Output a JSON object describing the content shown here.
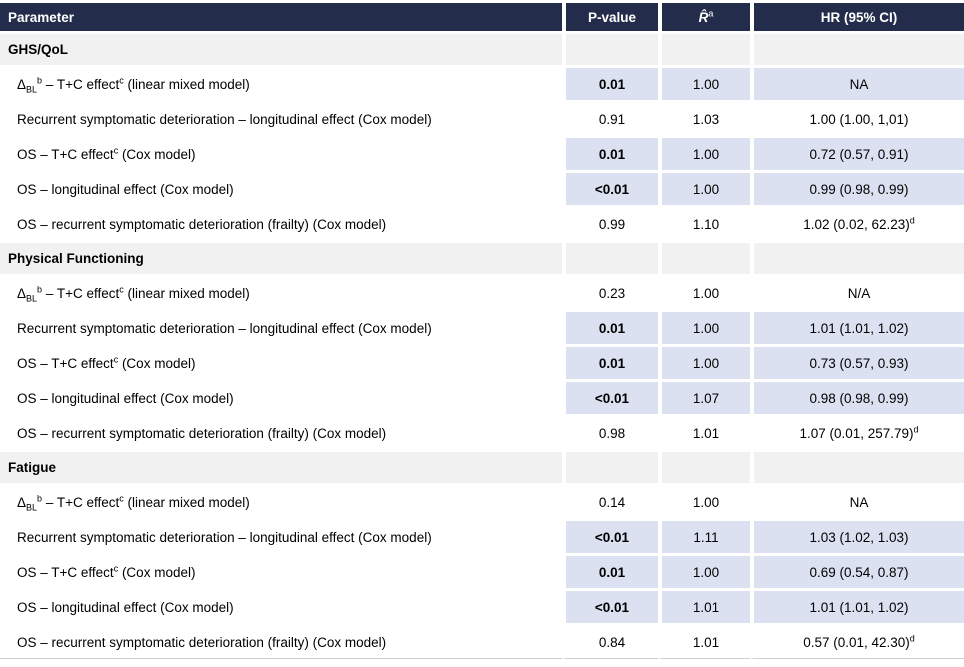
{
  "table": {
    "colors": {
      "header_bg": "#232c4b",
      "header_text": "#ffffff",
      "section_bg": "#f1f1f1",
      "significant_row_bg": "#dce1f2",
      "body_text": "#000000"
    },
    "columns": [
      {
        "label": "Parameter"
      },
      {
        "label": "P-value"
      },
      {
        "label": "R̂",
        "sup": "a"
      },
      {
        "label": "HR (95% CI)"
      }
    ],
    "sections": [
      {
        "title": "GHS/QoL",
        "rows": [
          {
            "parameter": [
              {
                "v": "Δ"
              },
              {
                "t": "sub",
                "v": "BL"
              },
              {
                "t": "sup",
                "v": "b"
              },
              {
                "v": " – T+C effect"
              },
              {
                "t": "sup",
                "v": "c"
              },
              {
                "v": " (linear mixed model)"
              }
            ],
            "p_value": "0.01",
            "p_bold": true,
            "r_hat": "1.00",
            "hr": "NA",
            "highlight": true
          },
          {
            "parameter": [
              {
                "v": "Recurrent symptomatic deterioration – longitudinal effect (Cox model)"
              }
            ],
            "p_value": "0.91",
            "p_bold": false,
            "r_hat": "1.03",
            "hr": "1.00 (1.00, 1,01)",
            "highlight": false
          },
          {
            "parameter": [
              {
                "v": "OS – T+C effect"
              },
              {
                "t": "sup",
                "v": "c"
              },
              {
                "v": " (Cox model)"
              }
            ],
            "p_value": "0.01",
            "p_bold": true,
            "r_hat": "1.00",
            "hr": "0.72 (0.57, 0.91)",
            "highlight": true
          },
          {
            "parameter": [
              {
                "v": "OS – longitudinal effect (Cox model)"
              }
            ],
            "p_value": "<0.01",
            "p_bold": true,
            "r_hat": "1.00",
            "hr": "0.99 (0.98, 0.99)",
            "highlight": true
          },
          {
            "parameter": [
              {
                "v": "OS – recurrent symptomatic deterioration (frailty) (Cox model)"
              }
            ],
            "p_value": "0.99",
            "p_bold": false,
            "r_hat": "1.10",
            "hr": "1.02 (0.02, 62.23)",
            "hr_sup": "d",
            "highlight": false
          }
        ]
      },
      {
        "title": "Physical Functioning",
        "rows": [
          {
            "parameter": [
              {
                "v": "Δ"
              },
              {
                "t": "sub",
                "v": "BL"
              },
              {
                "t": "sup",
                "v": "b"
              },
              {
                "v": " – T+C effect"
              },
              {
                "t": "sup",
                "v": "c"
              },
              {
                "v": " (linear mixed model)"
              }
            ],
            "p_value": "0.23",
            "p_bold": false,
            "r_hat": "1.00",
            "hr": "N/A",
            "highlight": false
          },
          {
            "parameter": [
              {
                "v": "Recurrent symptomatic deterioration – longitudinal effect (Cox model)"
              }
            ],
            "p_value": "0.01",
            "p_bold": true,
            "r_hat": "1.00",
            "hr": "1.01 (1.01, 1.02)",
            "highlight": true
          },
          {
            "parameter": [
              {
                "v": "OS – T+C effect"
              },
              {
                "t": "sup",
                "v": "c"
              },
              {
                "v": " (Cox model)"
              }
            ],
            "p_value": "0.01",
            "p_bold": true,
            "r_hat": "1.00",
            "hr": "0.73 (0.57, 0.93)",
            "highlight": true
          },
          {
            "parameter": [
              {
                "v": "OS – longitudinal effect (Cox model)"
              }
            ],
            "p_value": "<0.01",
            "p_bold": true,
            "r_hat": "1.07",
            "hr": "0.98 (0.98, 0.99)",
            "highlight": true
          },
          {
            "parameter": [
              {
                "v": "OS – recurrent symptomatic deterioration (frailty) (Cox model)"
              }
            ],
            "p_value": "0.98",
            "p_bold": false,
            "r_hat": "1.01",
            "hr": "1.07 (0.01, 257.79)",
            "hr_sup": "d",
            "highlight": false
          }
        ]
      },
      {
        "title": "Fatigue",
        "rows": [
          {
            "parameter": [
              {
                "v": "Δ"
              },
              {
                "t": "sub",
                "v": "BL"
              },
              {
                "t": "sup",
                "v": "b"
              },
              {
                "v": " – T+C effect"
              },
              {
                "t": "sup",
                "v": "c"
              },
              {
                "v": " (linear mixed model)"
              }
            ],
            "p_value": "0.14",
            "p_bold": false,
            "r_hat": "1.00",
            "hr": "NA",
            "highlight": false
          },
          {
            "parameter": [
              {
                "v": "Recurrent symptomatic deterioration – longitudinal effect (Cox model)"
              }
            ],
            "p_value": "<0.01",
            "p_bold": true,
            "r_hat": "1.11",
            "hr": "1.03 (1.02, 1.03)",
            "highlight": true
          },
          {
            "parameter": [
              {
                "v": "OS – T+C effect"
              },
              {
                "t": "sup",
                "v": "c"
              },
              {
                "v": " (Cox model)"
              }
            ],
            "p_value": "0.01",
            "p_bold": true,
            "r_hat": "1.00",
            "hr": "0.69 (0.54, 0.87)",
            "highlight": true
          },
          {
            "parameter": [
              {
                "v": "OS – longitudinal effect (Cox model)"
              }
            ],
            "p_value": "<0.01",
            "p_bold": true,
            "r_hat": "1.01",
            "hr": "1.01 (1.01, 1.02)",
            "highlight": true
          },
          {
            "parameter": [
              {
                "v": "OS – recurrent symptomatic deterioration (frailty) (Cox model)"
              }
            ],
            "p_value": "0.84",
            "p_bold": false,
            "r_hat": "1.01",
            "hr": "0.57 (0.01, 42.30)",
            "hr_sup": "d",
            "highlight": false
          }
        ]
      }
    ]
  }
}
